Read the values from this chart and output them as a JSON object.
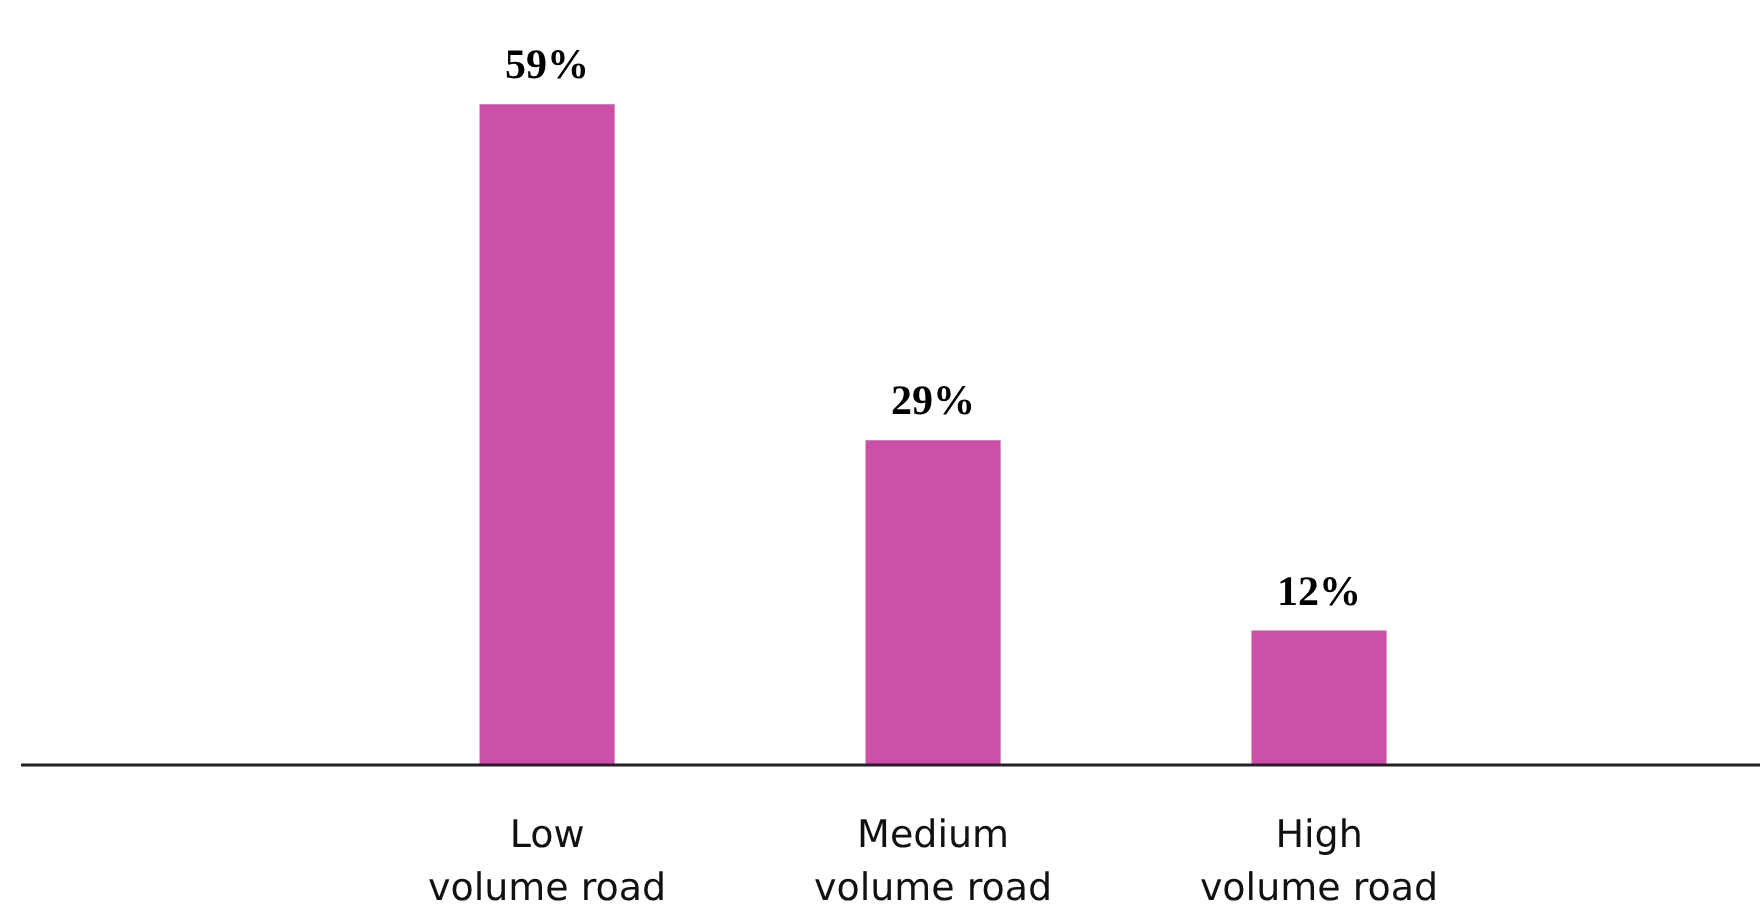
{
  "chart_data": {
    "type": "bar",
    "categories": [
      "Low\nvolume road",
      "Medium\nvolume road",
      "High\nvolume road"
    ],
    "values": [
      59,
      29,
      12
    ],
    "value_labels": [
      "59%",
      "29%",
      "12%"
    ],
    "color": "#cc4fa8",
    "grid": false
  }
}
